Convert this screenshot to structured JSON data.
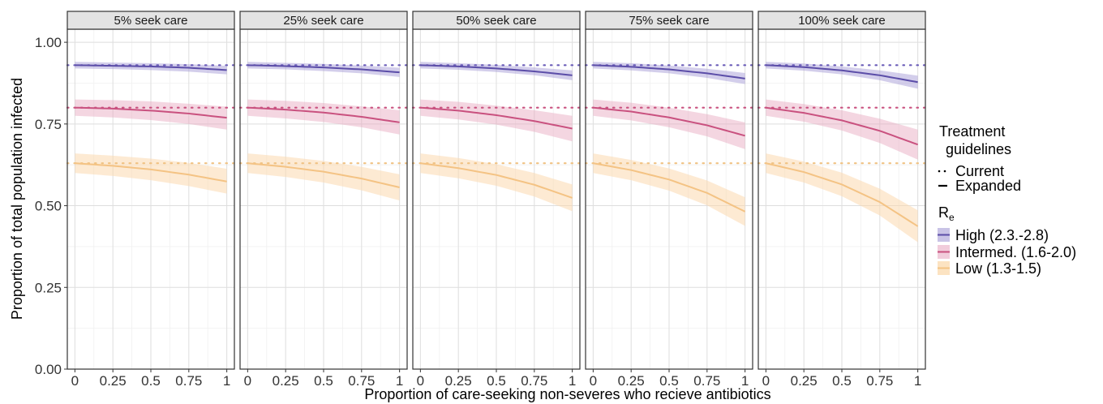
{
  "chart_data": {
    "type": "line",
    "xlabel": "Proportion of care-seeking non-severes who recieve antibiotics",
    "ylabel": "Proportion of total population infected",
    "ylim": [
      0,
      1.04
    ],
    "xlim": [
      -0.05,
      1.05
    ],
    "x_ticks": [
      0,
      0.25,
      0.5,
      0.75,
      1
    ],
    "x_tick_labels": [
      "0",
      "0.25",
      "0.5",
      "0.75",
      "1"
    ],
    "y_ticks": [
      0,
      0.25,
      0.5,
      0.75,
      1.0
    ],
    "y_tick_labels": [
      "0.00",
      "0.25",
      "0.50",
      "0.75",
      "1.00"
    ],
    "grid": true,
    "x": [
      0,
      0.25,
      0.5,
      0.75,
      1
    ],
    "legend": {
      "placement": "right",
      "guidelines_title_line1": "Treatment",
      "guidelines_title_line2": "guidelines",
      "guidelines_items": [
        "Current",
        "Expanded"
      ],
      "re_title_main": "R",
      "re_title_sub": "e",
      "re_items": [
        "High (2.3.-2.8)",
        "Intermed. (1.6-2.0)",
        "Low (1.3-1.5)"
      ]
    },
    "colors": {
      "High (2.3.-2.8)": {
        "line": "#5b4da8",
        "band": "#9d92d2",
        "dots": "#6a5cb8"
      },
      "Intermed. (1.6-2.0)": {
        "line": "#c9517f",
        "band": "#e6a3bd",
        "dots": "#c9517f"
      },
      "Low (1.3-1.5)": {
        "line": "#f4c384",
        "band": "#fbd9ae",
        "dots": "#f0c283"
      }
    },
    "panels": [
      {
        "title": "5% seek care",
        "series": [
          {
            "name": "High (2.3.-2.8)",
            "current": 0.93,
            "values": [
              0.93,
              0.928,
              0.926,
              0.922,
              0.915
            ],
            "lower": [
              0.92,
              0.918,
              0.915,
              0.91,
              0.902
            ],
            "upper": [
              0.94,
              0.938,
              0.936,
              0.933,
              0.928
            ]
          },
          {
            "name": "Intermed. (1.6-2.0)",
            "current": 0.8,
            "values": [
              0.8,
              0.797,
              0.791,
              0.782,
              0.769
            ],
            "lower": [
              0.775,
              0.77,
              0.762,
              0.75,
              0.733
            ],
            "upper": [
              0.825,
              0.823,
              0.819,
              0.812,
              0.803
            ]
          },
          {
            "name": "Low (1.3-1.5)",
            "current": 0.63,
            "values": [
              0.63,
              0.622,
              0.611,
              0.595,
              0.574
            ],
            "lower": [
              0.6,
              0.591,
              0.578,
              0.56,
              0.537
            ],
            "upper": [
              0.66,
              0.653,
              0.644,
              0.631,
              0.613
            ]
          }
        ]
      },
      {
        "title": "25% seek care",
        "series": [
          {
            "name": "High (2.3.-2.8)",
            "current": 0.93,
            "values": [
              0.93,
              0.927,
              0.923,
              0.917,
              0.908
            ],
            "lower": [
              0.92,
              0.917,
              0.912,
              0.905,
              0.894
            ],
            "upper": [
              0.94,
              0.937,
              0.934,
              0.929,
              0.922
            ]
          },
          {
            "name": "Intermed. (1.6-2.0)",
            "current": 0.8,
            "values": [
              0.8,
              0.794,
              0.785,
              0.772,
              0.755
            ],
            "lower": [
              0.775,
              0.767,
              0.756,
              0.74,
              0.718
            ],
            "upper": [
              0.825,
              0.821,
              0.814,
              0.804,
              0.792
            ]
          },
          {
            "name": "Low (1.3-1.5)",
            "current": 0.63,
            "values": [
              0.63,
              0.619,
              0.604,
              0.583,
              0.556
            ],
            "lower": [
              0.6,
              0.588,
              0.571,
              0.547,
              0.516
            ],
            "upper": [
              0.66,
              0.65,
              0.637,
              0.619,
              0.596
            ]
          }
        ]
      },
      {
        "title": "50% seek care",
        "series": [
          {
            "name": "High (2.3.-2.8)",
            "current": 0.93,
            "values": [
              0.93,
              0.926,
              0.92,
              0.911,
              0.899
            ],
            "lower": [
              0.92,
              0.916,
              0.909,
              0.899,
              0.884
            ],
            "upper": [
              0.94,
              0.936,
              0.931,
              0.923,
              0.914
            ]
          },
          {
            "name": "Intermed. (1.6-2.0)",
            "current": 0.8,
            "values": [
              0.8,
              0.791,
              0.777,
              0.759,
              0.736
            ],
            "lower": [
              0.775,
              0.764,
              0.748,
              0.726,
              0.697
            ],
            "upper": [
              0.825,
              0.818,
              0.806,
              0.792,
              0.775
            ]
          },
          {
            "name": "Low (1.3-1.5)",
            "current": 0.63,
            "values": [
              0.63,
              0.615,
              0.594,
              0.564,
              0.524
            ],
            "lower": [
              0.6,
              0.584,
              0.561,
              0.528,
              0.483
            ],
            "upper": [
              0.66,
              0.646,
              0.627,
              0.6,
              0.565
            ]
          }
        ]
      },
      {
        "title": "75% seek care",
        "series": [
          {
            "name": "High (2.3.-2.8)",
            "current": 0.93,
            "values": [
              0.93,
              0.925,
              0.917,
              0.905,
              0.889
            ],
            "lower": [
              0.92,
              0.914,
              0.905,
              0.891,
              0.872
            ],
            "upper": [
              0.94,
              0.936,
              0.929,
              0.919,
              0.906
            ]
          },
          {
            "name": "Intermed. (1.6-2.0)",
            "current": 0.8,
            "values": [
              0.8,
              0.788,
              0.77,
              0.746,
              0.714
            ],
            "lower": [
              0.775,
              0.761,
              0.74,
              0.712,
              0.673
            ],
            "upper": [
              0.825,
              0.815,
              0.8,
              0.78,
              0.755
            ]
          },
          {
            "name": "Low (1.3-1.5)",
            "current": 0.63,
            "values": [
              0.63,
              0.609,
              0.58,
              0.539,
              0.482
            ],
            "lower": [
              0.6,
              0.578,
              0.546,
              0.501,
              0.438
            ],
            "upper": [
              0.66,
              0.64,
              0.614,
              0.577,
              0.526
            ]
          }
        ]
      },
      {
        "title": "100% seek care",
        "series": [
          {
            "name": "High (2.3.-2.8)",
            "current": 0.93,
            "values": [
              0.93,
              0.924,
              0.914,
              0.899,
              0.878
            ],
            "lower": [
              0.92,
              0.913,
              0.902,
              0.884,
              0.858
            ],
            "upper": [
              0.94,
              0.935,
              0.926,
              0.914,
              0.898
            ]
          },
          {
            "name": "Intermed. (1.6-2.0)",
            "current": 0.8,
            "values": [
              0.8,
              0.784,
              0.761,
              0.729,
              0.687
            ],
            "lower": [
              0.775,
              0.757,
              0.73,
              0.692,
              0.641
            ],
            "upper": [
              0.825,
              0.811,
              0.792,
              0.766,
              0.733
            ]
          },
          {
            "name": "Low (1.3-1.5)",
            "current": 0.63,
            "values": [
              0.63,
              0.603,
              0.565,
              0.511,
              0.437
            ],
            "lower": [
              0.6,
              0.571,
              0.529,
              0.47,
              0.388
            ],
            "upper": [
              0.66,
              0.635,
              0.601,
              0.552,
              0.486
            ]
          }
        ]
      }
    ]
  }
}
